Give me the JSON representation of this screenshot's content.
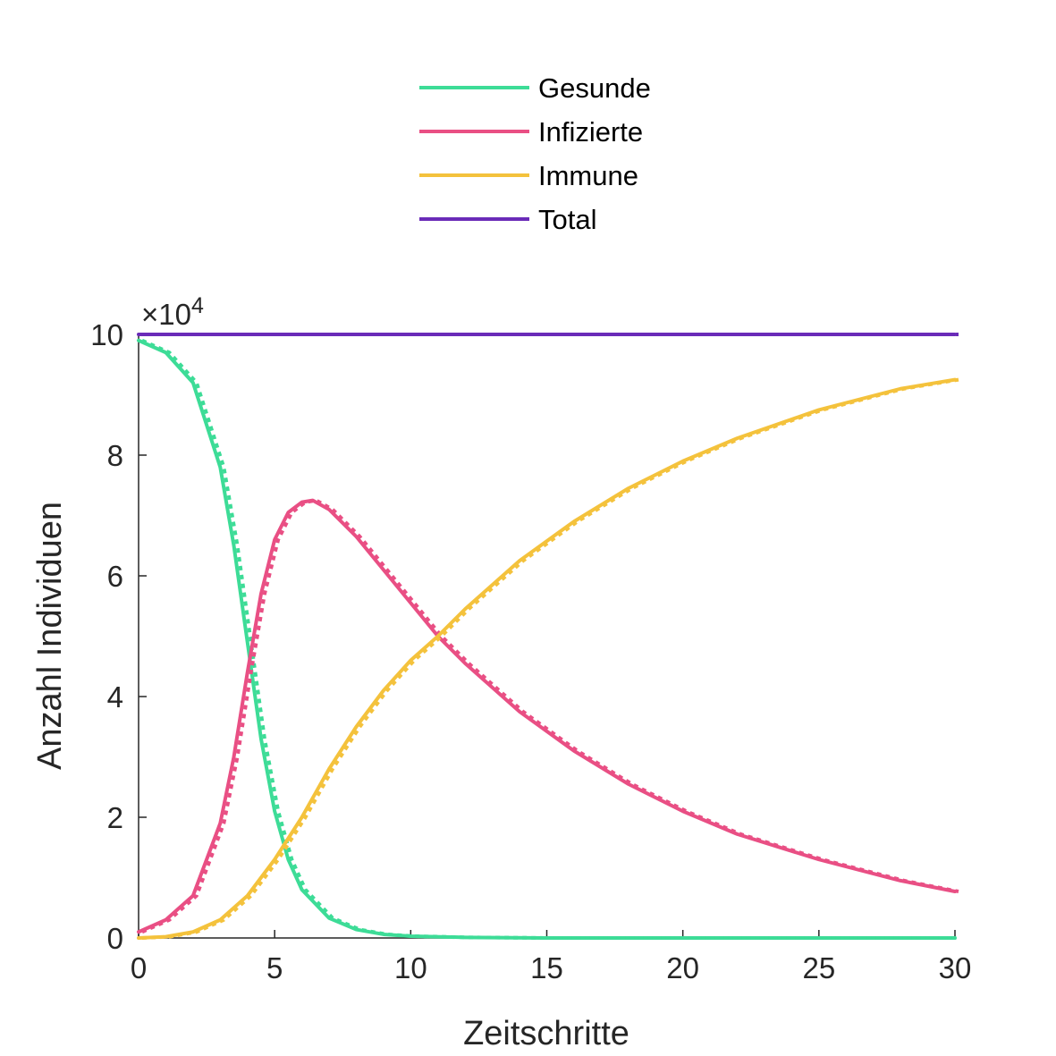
{
  "chart_data": {
    "type": "line",
    "xlabel": "Zeitschritte",
    "ylabel": "Anzahl Individuen",
    "xlim": [
      0,
      30
    ],
    "ylim": [
      0,
      10
    ],
    "y_multiplier": "×10",
    "y_multiplier_exponent": "4",
    "xticks": [
      0,
      5,
      10,
      15,
      20,
      25,
      30
    ],
    "yticks": [
      0,
      2,
      4,
      6,
      8,
      10
    ],
    "grid": false,
    "legend_position": "top-center",
    "series": [
      {
        "name": "Gesunde",
        "color": "#3ddc97",
        "x": [
          0,
          1,
          2,
          3,
          3.5,
          4,
          4.5,
          5,
          5.5,
          6,
          7,
          8,
          9,
          10,
          12,
          15,
          20,
          25,
          30
        ],
        "y": [
          9.9,
          9.7,
          9.2,
          7.8,
          6.5,
          4.9,
          3.3,
          2.1,
          1.3,
          0.8,
          0.33,
          0.14,
          0.06,
          0.03,
          0.01,
          0,
          0,
          0,
          0
        ]
      },
      {
        "name": "Infizierte",
        "color": "#e94f84",
        "x": [
          0,
          1,
          2,
          3,
          3.5,
          4,
          4.5,
          5,
          5.5,
          6,
          6.4,
          7,
          8,
          9,
          10,
          11,
          12,
          14,
          16,
          18,
          20,
          22,
          25,
          28,
          30
        ],
        "y": [
          0.1,
          0.3,
          0.7,
          1.9,
          3.0,
          4.4,
          5.7,
          6.6,
          7.05,
          7.22,
          7.25,
          7.1,
          6.65,
          6.1,
          5.55,
          5.0,
          4.55,
          3.75,
          3.1,
          2.55,
          2.1,
          1.72,
          1.3,
          0.95,
          0.77
        ]
      },
      {
        "name": "Immune",
        "color": "#f4c23c",
        "x": [
          0,
          1,
          2,
          3,
          4,
          5,
          6,
          7,
          8,
          9,
          10,
          11,
          12,
          14,
          16,
          18,
          20,
          22,
          25,
          28,
          30
        ],
        "y": [
          0,
          0.02,
          0.1,
          0.3,
          0.7,
          1.3,
          2.0,
          2.8,
          3.5,
          4.1,
          4.6,
          5.0,
          5.45,
          6.25,
          6.9,
          7.45,
          7.9,
          8.28,
          8.75,
          9.1,
          9.25
        ]
      },
      {
        "name": "Total",
        "color": "#6a2bb8",
        "x": [
          0,
          30
        ],
        "y": [
          10,
          10
        ]
      }
    ]
  }
}
